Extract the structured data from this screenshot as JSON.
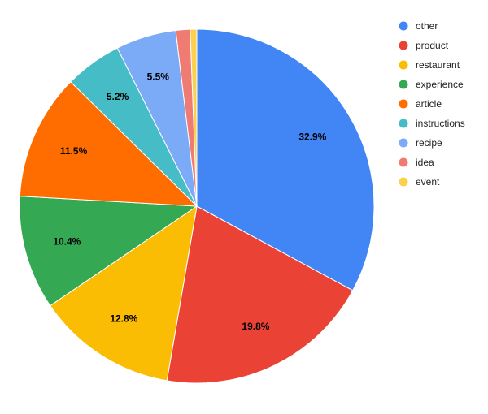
{
  "chart_data": {
    "type": "pie",
    "categories": [
      "other",
      "product",
      "restaurant",
      "experience",
      "article",
      "instructions",
      "recipe",
      "idea",
      "event"
    ],
    "values": [
      32.9,
      19.8,
      12.8,
      10.4,
      11.5,
      5.2,
      5.5,
      1.3,
      0.6
    ],
    "value_labels": [
      "32.9%",
      "19.8%",
      "12.8%",
      "10.4%",
      "11.5%",
      "5.2%",
      "5.5%",
      null,
      null
    ],
    "colors": [
      "#4285f4",
      "#ea4335",
      "#fbbc04",
      "#34a853",
      "#ff6d01",
      "#46bdc6",
      "#7baaf7",
      "#f07b72",
      "#fcd04f"
    ],
    "legend": "right"
  }
}
